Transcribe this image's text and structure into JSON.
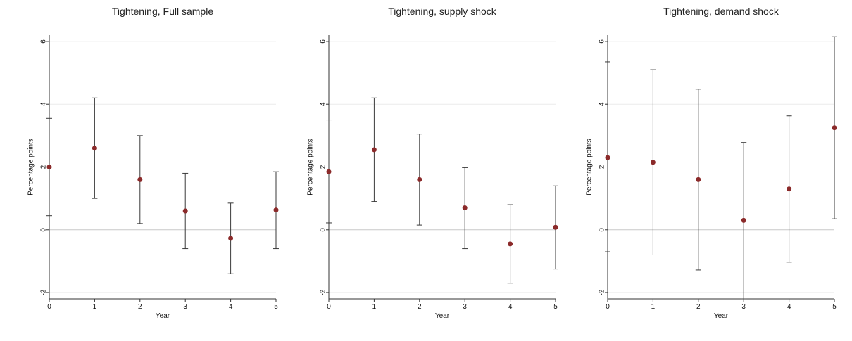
{
  "colors": {
    "point": "#8b2a2a",
    "errorbar": "#3a3a3a",
    "zero_line": "#c8c8c8",
    "grid": "#ececec"
  },
  "chart_data": [
    {
      "type": "scatter",
      "title": "Tightening, Full sample",
      "xlabel": "Year",
      "ylabel": "Percentage points",
      "xlim": [
        0,
        5
      ],
      "ylim": [
        -2.2,
        6.2
      ],
      "x_ticks": [
        0,
        1,
        2,
        3,
        4,
        5
      ],
      "y_ticks": [
        -2,
        0,
        2,
        4,
        6
      ],
      "grid": "horizontal",
      "series": [
        {
          "x": [
            0,
            1,
            2,
            3,
            4,
            5
          ],
          "y": [
            2.0,
            2.6,
            1.6,
            0.6,
            -0.27,
            0.63
          ],
          "ci_low": [
            0.45,
            1.0,
            0.2,
            -0.6,
            -1.4,
            -0.6
          ],
          "ci_high": [
            3.55,
            4.2,
            3.0,
            1.8,
            0.85,
            1.85
          ]
        }
      ]
    },
    {
      "type": "scatter",
      "title": "Tightening, supply shock",
      "xlabel": "Year",
      "ylabel": "Percentage points",
      "xlim": [
        0,
        5
      ],
      "ylim": [
        -2.2,
        6.2
      ],
      "x_ticks": [
        0,
        1,
        2,
        3,
        4,
        5
      ],
      "y_ticks": [
        -2,
        0,
        2,
        4,
        6
      ],
      "grid": "horizontal",
      "series": [
        {
          "x": [
            0,
            1,
            2,
            3,
            4,
            5
          ],
          "y": [
            1.85,
            2.55,
            1.6,
            0.7,
            -0.45,
            0.08
          ],
          "ci_low": [
            0.22,
            0.9,
            0.15,
            -0.6,
            -1.7,
            -1.25
          ],
          "ci_high": [
            3.5,
            4.2,
            3.05,
            1.98,
            0.8,
            1.4
          ]
        }
      ]
    },
    {
      "type": "scatter",
      "title": "Tightening, demand shock",
      "xlabel": "Year",
      "ylabel": "Percentage points",
      "xlim": [
        0,
        5
      ],
      "ylim": [
        -2.2,
        6.2
      ],
      "x_ticks": [
        0,
        1,
        2,
        3,
        4,
        5
      ],
      "y_ticks": [
        -2,
        0,
        2,
        4,
        6
      ],
      "grid": "horizontal",
      "series": [
        {
          "x": [
            0,
            1,
            2,
            3,
            4,
            5
          ],
          "y": [
            2.3,
            2.15,
            1.6,
            0.3,
            1.3,
            3.25
          ],
          "ci_low": [
            -0.7,
            -0.8,
            -1.28,
            -2.2,
            -1.03,
            0.35
          ],
          "ci_high": [
            5.35,
            5.1,
            4.48,
            2.78,
            3.63,
            6.15
          ]
        }
      ]
    }
  ]
}
